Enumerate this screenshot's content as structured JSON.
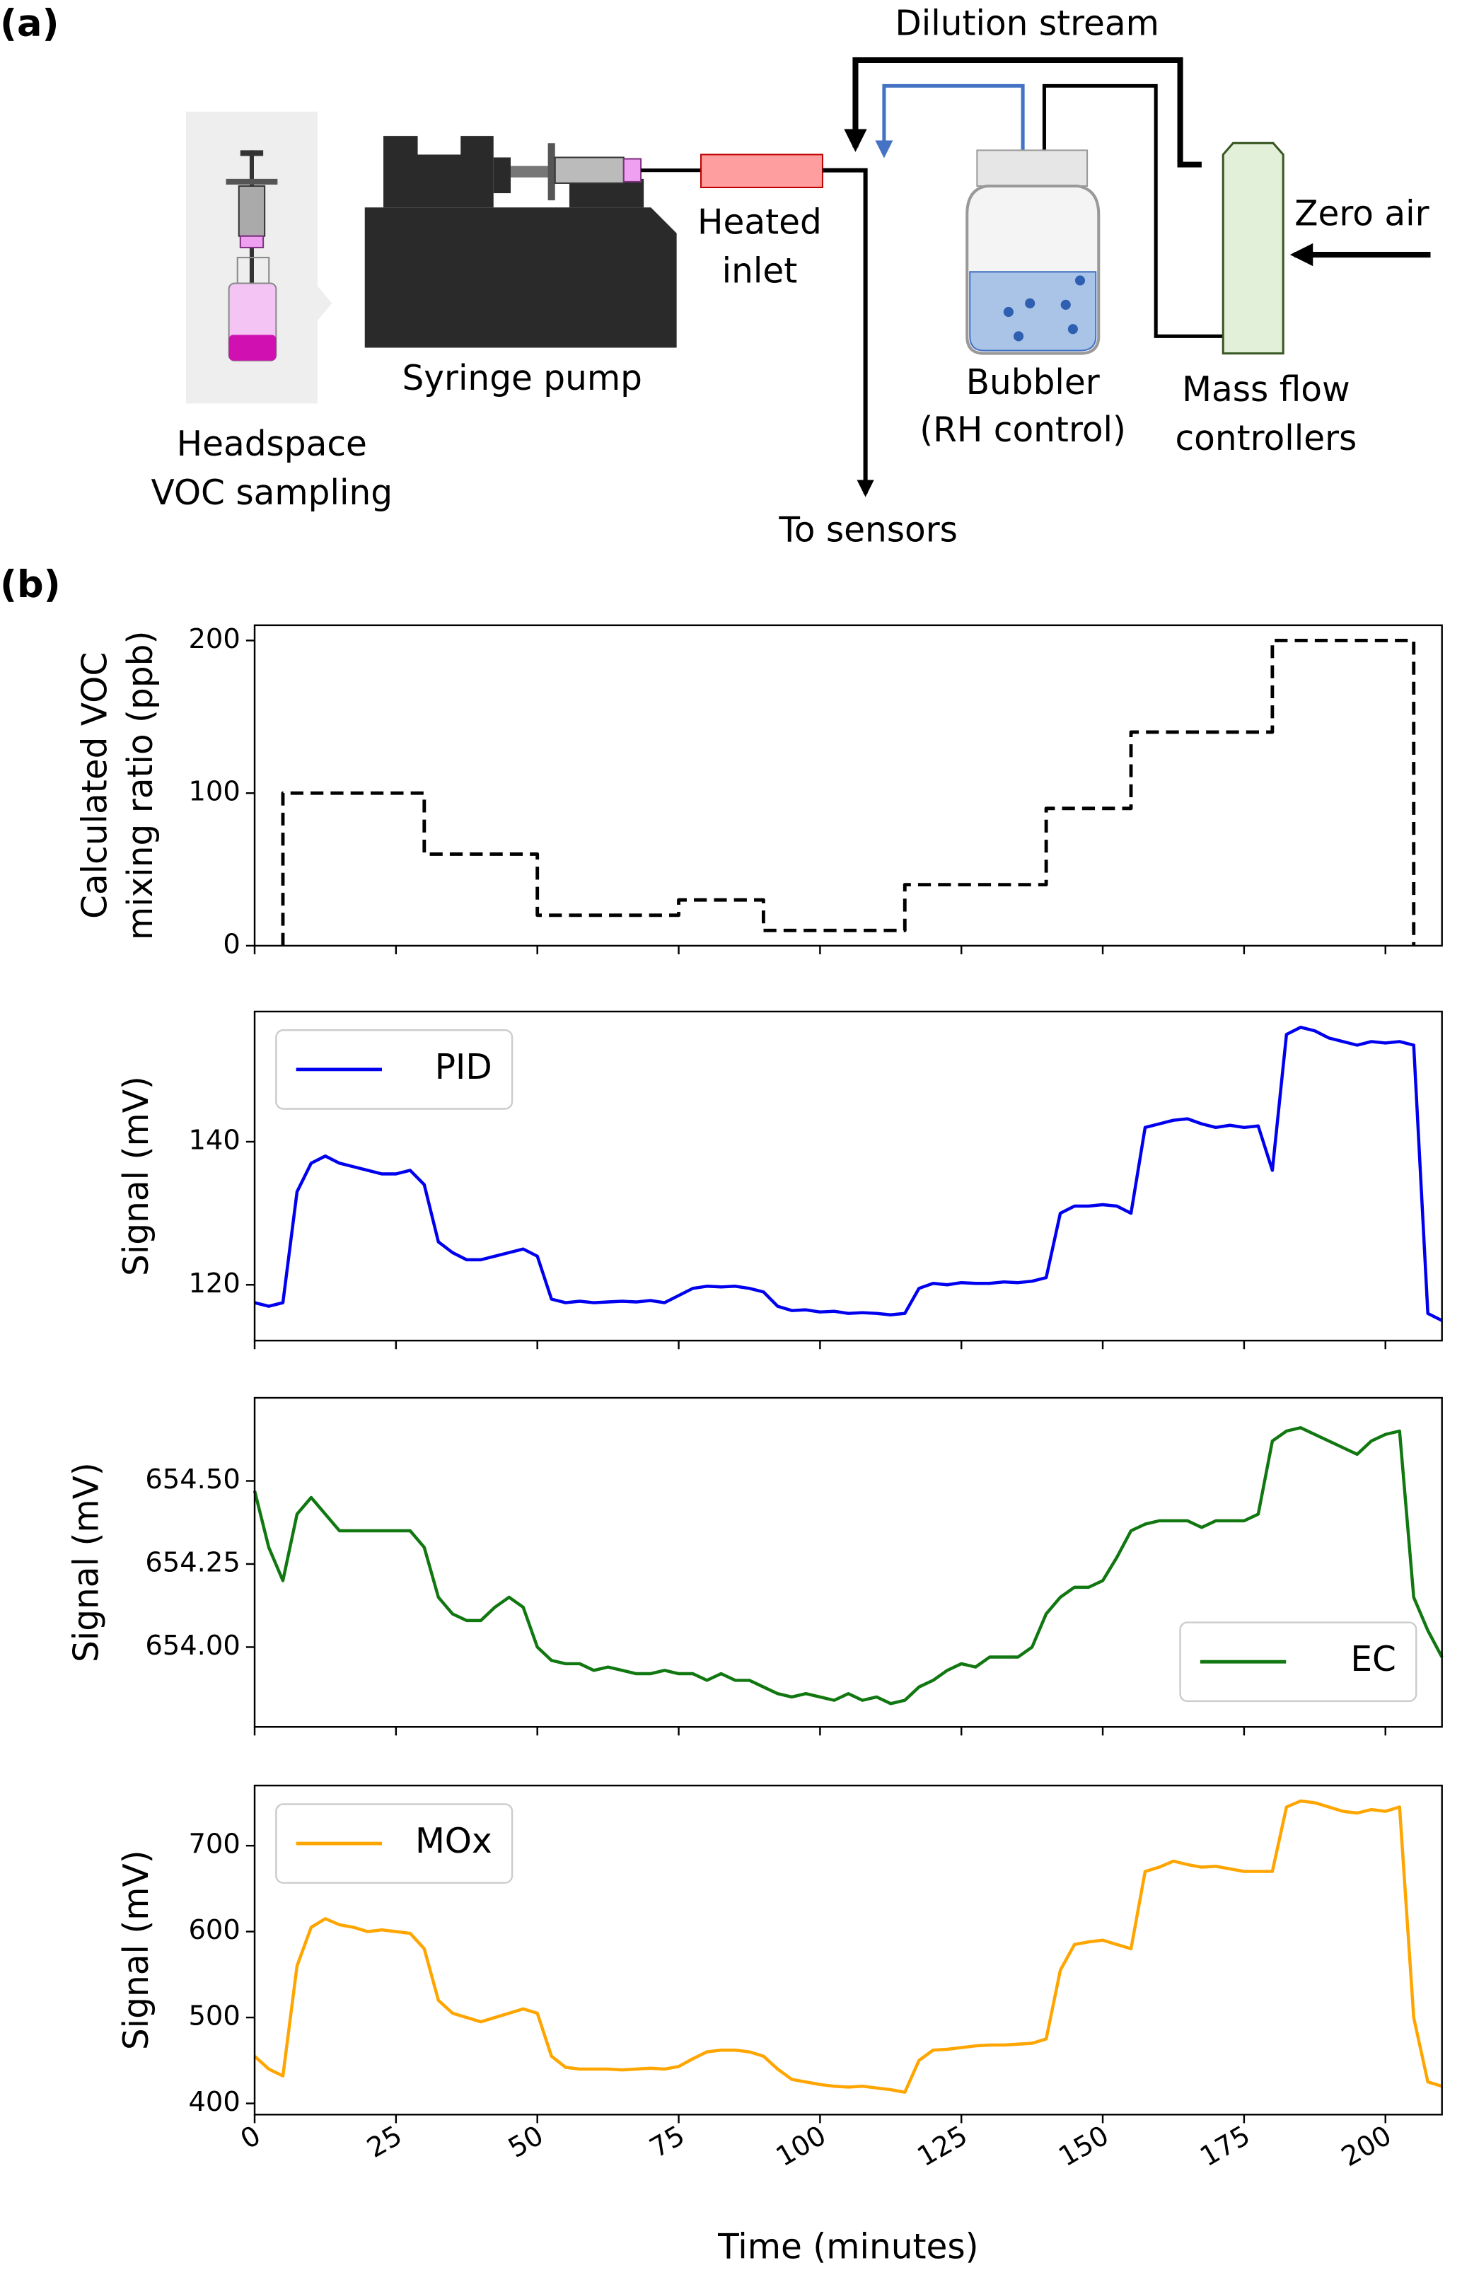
{
  "diagram": {
    "panel_label": "(a)",
    "dilution_stream": "Dilution stream",
    "heated_inlet": [
      "Heated",
      "inlet"
    ],
    "syringe_pump": "Syringe pump",
    "headspace": [
      "Headspace",
      "VOC sampling"
    ],
    "bubbler": [
      "Bubbler",
      "(RH control)"
    ],
    "mass_flow": [
      "Mass flow",
      "controllers"
    ],
    "zero_air": "Zero air",
    "to_sensors": "To sensors"
  },
  "panel_b_label": "(b)",
  "chart_data": [
    {
      "type": "line",
      "ylabel": [
        "Calculated VOC",
        "mixing ratio (ppb)"
      ],
      "xlim": [
        0,
        210
      ],
      "ylim": [
        0,
        210
      ],
      "yticks": [
        0,
        100,
        200
      ],
      "x": [
        5,
        5,
        30,
        30,
        50,
        50,
        75,
        75,
        90,
        90,
        115,
        115,
        140,
        140,
        155,
        155,
        180,
        180,
        205,
        205
      ],
      "series": [
        {
          "color": "#000000",
          "linestyle": "dashed",
          "values": [
            0,
            100,
            100,
            60,
            60,
            20,
            20,
            30,
            30,
            10,
            10,
            40,
            40,
            90,
            90,
            140,
            140,
            200,
            200,
            0
          ]
        }
      ]
    },
    {
      "type": "line",
      "ylabel": "Signal (mV)",
      "xlim": [
        0,
        210
      ],
      "ylim": [
        112.2,
        158.2
      ],
      "yticks": [
        120,
        140
      ],
      "legend": "upper left",
      "x": [
        0,
        2.5,
        5,
        7.5,
        10,
        12.5,
        15,
        17.5,
        20,
        22.5,
        25,
        27.5,
        30,
        32.5,
        35,
        37.5,
        40,
        42.5,
        45,
        47.5,
        50,
        52.5,
        55,
        57.5,
        60,
        62.5,
        65,
        67.5,
        70,
        72.5,
        75,
        77.5,
        80,
        82.5,
        85,
        87.5,
        90,
        92.5,
        95,
        97.5,
        100,
        102.5,
        105,
        107.5,
        110,
        112.5,
        115,
        117.5,
        120,
        122.5,
        125,
        127.5,
        130,
        132.5,
        135,
        137.5,
        140,
        142.5,
        145,
        147.5,
        150,
        152.5,
        155,
        157.5,
        160,
        162.5,
        165,
        167.5,
        170,
        172.5,
        175,
        177.5,
        180,
        182.5,
        185,
        187.5,
        190,
        192.5,
        195,
        197.5,
        200,
        202.5,
        205,
        207.5,
        210
      ],
      "series": [
        {
          "name": "PID",
          "color": "#0000ee",
          "values": [
            117.5,
            117,
            117.5,
            133,
            137,
            138,
            137,
            136.5,
            136,
            135.5,
            135.5,
            136,
            134,
            126,
            124.5,
            123.5,
            123.5,
            124,
            124.5,
            125,
            124,
            118,
            117.5,
            117.7,
            117.5,
            117.6,
            117.7,
            117.6,
            117.8,
            117.5,
            118.5,
            119.5,
            119.8,
            119.7,
            119.8,
            119.5,
            119,
            117,
            116.4,
            116.5,
            116.2,
            116.3,
            116,
            116.1,
            116,
            115.8,
            116,
            119.5,
            120.2,
            120,
            120.3,
            120.2,
            120.2,
            120.4,
            120.3,
            120.5,
            121,
            130,
            131,
            131,
            131.2,
            131,
            130,
            142,
            142.5,
            143,
            143.2,
            142.5,
            142,
            142.3,
            142,
            142.2,
            136,
            155,
            156,
            155.5,
            154.5,
            154,
            153.5,
            154,
            153.8,
            154,
            153.5,
            116,
            115
          ]
        }
      ]
    },
    {
      "type": "line",
      "ylabel": "Signal (mV)",
      "xlim": [
        0,
        210
      ],
      "ylim": [
        653.76,
        654.75
      ],
      "yticks": [
        {
          "value": 654,
          "label": "654.00"
        },
        {
          "value": 654.25,
          "label": "654.25"
        },
        {
          "value": 654.5,
          "label": "654.50"
        }
      ],
      "legend": "lower right",
      "x": [
        0,
        2.5,
        5,
        7.5,
        10,
        12.5,
        15,
        17.5,
        20,
        22.5,
        25,
        27.5,
        30,
        32.5,
        35,
        37.5,
        40,
        42.5,
        45,
        47.5,
        50,
        52.5,
        55,
        57.5,
        60,
        62.5,
        65,
        67.5,
        70,
        72.5,
        75,
        77.5,
        80,
        82.5,
        85,
        87.5,
        90,
        92.5,
        95,
        97.5,
        100,
        102.5,
        105,
        107.5,
        110,
        112.5,
        115,
        117.5,
        120,
        122.5,
        125,
        127.5,
        130,
        132.5,
        135,
        137.5,
        140,
        142.5,
        145,
        147.5,
        150,
        152.5,
        155,
        157.5,
        160,
        162.5,
        165,
        167.5,
        170,
        172.5,
        175,
        177.5,
        180,
        182.5,
        185,
        187.5,
        190,
        192.5,
        195,
        197.5,
        200,
        202.5,
        205,
        207.5,
        210
      ],
      "series": [
        {
          "name": "EC",
          "color": "#117711",
          "values": [
            654.47,
            654.3,
            654.2,
            654.4,
            654.45,
            654.4,
            654.35,
            654.35,
            654.35,
            654.35,
            654.35,
            654.35,
            654.3,
            654.15,
            654.1,
            654.08,
            654.08,
            654.12,
            654.15,
            654.12,
            654.0,
            653.96,
            653.95,
            653.95,
            653.93,
            653.94,
            653.93,
            653.92,
            653.92,
            653.93,
            653.92,
            653.92,
            653.9,
            653.92,
            653.9,
            653.9,
            653.88,
            653.86,
            653.85,
            653.86,
            653.85,
            653.84,
            653.86,
            653.84,
            653.85,
            653.83,
            653.84,
            653.88,
            653.9,
            653.93,
            653.95,
            653.94,
            653.97,
            653.97,
            653.97,
            654.0,
            654.1,
            654.15,
            654.18,
            654.18,
            654.2,
            654.27,
            654.35,
            654.37,
            654.38,
            654.38,
            654.38,
            654.36,
            654.38,
            654.38,
            654.38,
            654.4,
            654.62,
            654.65,
            654.66,
            654.64,
            654.62,
            654.6,
            654.58,
            654.62,
            654.64,
            654.65,
            654.15,
            654.05,
            653.97
          ]
        }
      ]
    },
    {
      "type": "line",
      "ylabel": "Signal (mV)",
      "xlabel": "Time (minutes)",
      "xlim": [
        0,
        210
      ],
      "ylim": [
        387,
        770
      ],
      "yticks": [
        400,
        500,
        600,
        700
      ],
      "xticks": [
        0,
        25,
        50,
        75,
        100,
        125,
        150,
        175,
        200
      ],
      "legend": "upper left",
      "x": [
        0,
        2.5,
        5,
        7.5,
        10,
        12.5,
        15,
        17.5,
        20,
        22.5,
        25,
        27.5,
        30,
        32.5,
        35,
        37.5,
        40,
        42.5,
        45,
        47.5,
        50,
        52.5,
        55,
        57.5,
        60,
        62.5,
        65,
        67.5,
        70,
        72.5,
        75,
        77.5,
        80,
        82.5,
        85,
        87.5,
        90,
        92.5,
        95,
        97.5,
        100,
        102.5,
        105,
        107.5,
        110,
        112.5,
        115,
        117.5,
        120,
        122.5,
        125,
        127.5,
        130,
        132.5,
        135,
        137.5,
        140,
        142.5,
        145,
        147.5,
        150,
        152.5,
        155,
        157.5,
        160,
        162.5,
        165,
        167.5,
        170,
        172.5,
        175,
        177.5,
        180,
        182.5,
        185,
        187.5,
        190,
        192.5,
        195,
        197.5,
        200,
        202.5,
        205,
        207.5,
        210
      ],
      "series": [
        {
          "name": "MOx",
          "color": "#ffa500",
          "values": [
            455,
            440,
            432,
            560,
            605,
            615,
            608,
            605,
            600,
            602,
            600,
            598,
            580,
            520,
            505,
            500,
            495,
            500,
            505,
            510,
            505,
            455,
            442,
            440,
            440,
            440,
            439,
            440,
            441,
            440,
            443,
            452,
            460,
            462,
            462,
            460,
            455,
            440,
            428,
            425,
            422,
            420,
            419,
            420,
            418,
            416,
            413,
            450,
            462,
            463,
            465,
            467,
            468,
            468,
            469,
            470,
            475,
            555,
            585,
            588,
            590,
            585,
            580,
            670,
            675,
            682,
            678,
            675,
            676,
            673,
            670,
            670,
            670,
            745,
            752,
            750,
            745,
            740,
            738,
            742,
            740,
            745,
            500,
            425,
            420
          ]
        }
      ]
    }
  ]
}
